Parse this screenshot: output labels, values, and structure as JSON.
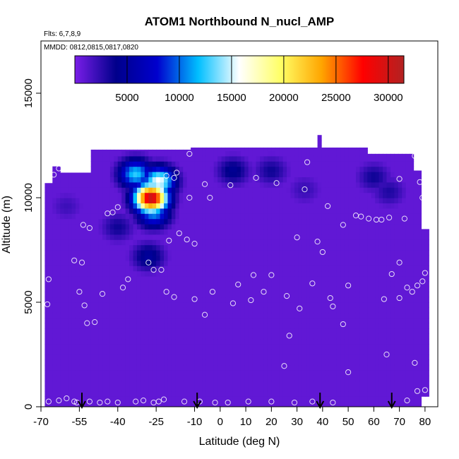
{
  "chart_data": {
    "type": "heatmap",
    "title": "ATOM1 Northbound N_nucl_AMP",
    "flights_label": "Flts: 6,7,8,9",
    "dates_label": "MMDD: 0812,0815,0817,0820",
    "xlabel": "Latitude (deg N)",
    "ylabel": "Altitude (m)",
    "xlim": [
      -70,
      85
    ],
    "ylim": [
      0,
      17500
    ],
    "x_ticks": [
      -70,
      -55,
      -40,
      -25,
      -10,
      0,
      10,
      20,
      30,
      40,
      50,
      60,
      70,
      80
    ],
    "x_tick_labels": [
      "-70",
      "-55",
      "-40",
      "-25",
      "-10",
      "0",
      "10",
      "20",
      "30",
      "40",
      "50",
      "60",
      "70",
      "80"
    ],
    "y_ticks": [
      0,
      5000,
      10000,
      15000
    ],
    "y_tick_labels": [
      "0",
      "5000",
      "10000",
      "15000"
    ],
    "colorbar": {
      "min": 0,
      "max": 31500,
      "ticks": [
        5000,
        10000,
        15000,
        20000,
        25000,
        30000
      ],
      "tick_labels": [
        "5000",
        "10000",
        "15000",
        "20000",
        "25000",
        "30000"
      ],
      "colors": [
        "#7a1ee8",
        "#00008b",
        "#0000cd",
        "#00bfff",
        "#ffffff",
        "#ffff66",
        "#ffa500",
        "#ff0000",
        "#b22222"
      ]
    },
    "background_value": 800,
    "hotspots": [
      {
        "lat": -27,
        "alt": 10000,
        "value": 31000
      },
      {
        "lat": -24,
        "alt": 10800,
        "value": 16000
      },
      {
        "lat": -33,
        "alt": 11150,
        "value": 12500
      },
      {
        "lat": -26,
        "alt": 9300,
        "value": 11000
      },
      {
        "lat": -28,
        "alt": 7200,
        "value": 5000
      },
      {
        "lat": -40,
        "alt": 8600,
        "value": 3500
      },
      {
        "lat": 5,
        "alt": 11300,
        "value": 4500
      },
      {
        "lat": 20,
        "alt": 11300,
        "value": 3500
      },
      {
        "lat": 60,
        "alt": 11000,
        "value": 3500
      },
      {
        "lat": 66,
        "alt": 10300,
        "value": 3000
      },
      {
        "lat": 33,
        "alt": 10400,
        "value": 2200
      },
      {
        "lat": -60,
        "alt": 9600,
        "value": 2000
      }
    ],
    "arrows_lat": [
      -54,
      -9,
      39,
      67
    ],
    "sample_points": [
      [
        -67,
        6100
      ],
      [
        -67.5,
        4900
      ],
      [
        -67,
        10900
      ],
      [
        -65,
        11100
      ],
      [
        -63,
        11400
      ],
      [
        -57,
        7000
      ],
      [
        -54,
        6900
      ],
      [
        -55,
        5500
      ],
      [
        -53,
        4850
      ],
      [
        -52,
        4000
      ],
      [
        -49,
        4050
      ],
      [
        -46,
        5400
      ],
      [
        -53.5,
        8700
      ],
      [
        -51,
        8550
      ],
      [
        -44,
        9250
      ],
      [
        -42,
        9300
      ],
      [
        -40,
        9550
      ],
      [
        -38,
        5700
      ],
      [
        -36,
        6100
      ],
      [
        -28,
        6900
      ],
      [
        -26,
        6550
      ],
      [
        -23,
        6550
      ],
      [
        -21,
        5500
      ],
      [
        -18,
        5250
      ],
      [
        -20,
        7950
      ],
      [
        -16,
        8300
      ],
      [
        -13,
        8000
      ],
      [
        -10,
        7800
      ],
      [
        -12,
        10000
      ],
      [
        -4,
        10000
      ],
      [
        -6,
        10650
      ],
      [
        -18,
        10950
      ],
      [
        -17,
        11200
      ],
      [
        -21,
        11050
      ],
      [
        -12,
        12100
      ],
      [
        4,
        10600
      ],
      [
        14,
        10950
      ],
      [
        22,
        10700
      ],
      [
        34,
        11700
      ],
      [
        33,
        10400
      ],
      [
        42,
        9600
      ],
      [
        48,
        8700
      ],
      [
        53,
        9150
      ],
      [
        55,
        9100
      ],
      [
        58,
        9000
      ],
      [
        61,
        8950
      ],
      [
        63,
        8950
      ],
      [
        66,
        9050
      ],
      [
        72,
        9000
      ],
      [
        70,
        10900
      ],
      [
        76,
        12000
      ],
      [
        78,
        10750
      ],
      [
        79,
        10000
      ],
      [
        80,
        6400
      ],
      [
        79,
        6000
      ],
      [
        77,
        5800
      ],
      [
        75,
        5500
      ],
      [
        73,
        5700
      ],
      [
        70,
        5200
      ],
      [
        70,
        6900
      ],
      [
        67,
        6350
      ],
      [
        64,
        5150
      ],
      [
        44,
        4800
      ],
      [
        43,
        5200
      ],
      [
        36,
        5900
      ],
      [
        31,
        4700
      ],
      [
        27,
        3400
      ],
      [
        25,
        1950
      ],
      [
        30,
        8100
      ],
      [
        38,
        7900
      ],
      [
        40,
        7400
      ],
      [
        50,
        5800
      ],
      [
        48,
        3950
      ],
      [
        50,
        1650
      ],
      [
        13,
        6300
      ],
      [
        7,
        5850
      ],
      [
        12,
        5100
      ],
      [
        5,
        4950
      ],
      [
        -3,
        5500
      ],
      [
        -6,
        4400
      ],
      [
        -10,
        5150
      ],
      [
        20,
        6300
      ],
      [
        26,
        5300
      ],
      [
        17,
        5500
      ],
      [
        76,
        2100
      ],
      [
        77,
        750
      ],
      [
        80,
        800
      ],
      [
        73,
        300
      ],
      [
        65,
        2500
      ],
      [
        44,
        200
      ],
      [
        36,
        250
      ],
      [
        29,
        200
      ],
      [
        20,
        250
      ],
      [
        11,
        250
      ],
      [
        3,
        200
      ],
      [
        -2,
        200
      ],
      [
        -8,
        250
      ],
      [
        -14,
        250
      ],
      [
        -24,
        250
      ],
      [
        -26,
        200
      ],
      [
        -30,
        300
      ],
      [
        -40,
        200
      ],
      [
        -47,
        200
      ],
      [
        -51,
        250
      ],
      [
        -56,
        200
      ],
      [
        -60,
        400
      ],
      [
        -63,
        300
      ],
      [
        -67,
        250
      ],
      [
        -57,
        250
      ],
      [
        -33,
        250
      ],
      [
        -22,
        350
      ],
      [
        -44,
        250
      ]
    ]
  }
}
